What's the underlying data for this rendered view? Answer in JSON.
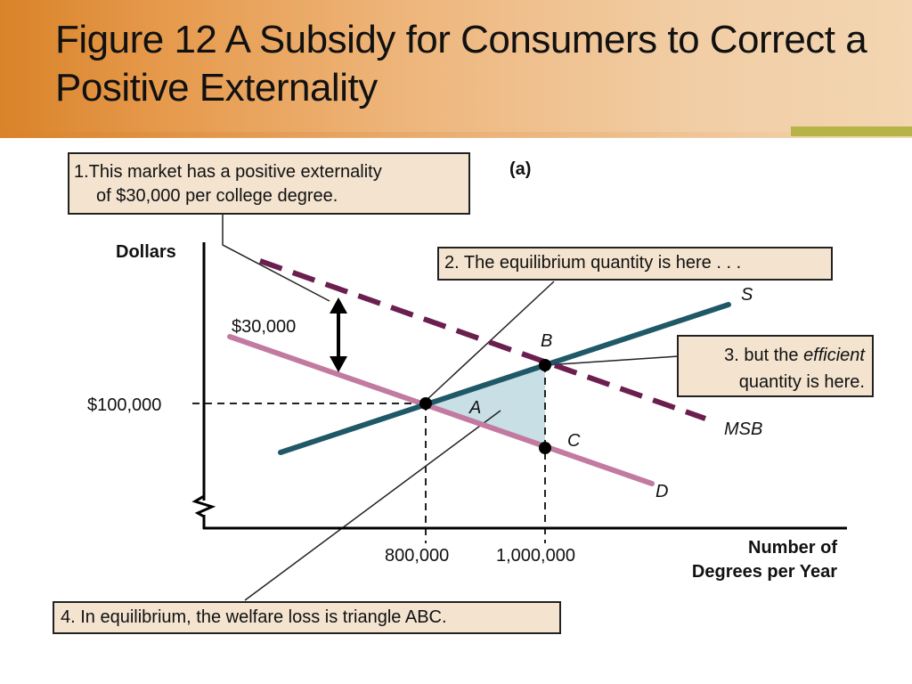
{
  "slide": {
    "title": "Figure 12 A Subsidy for Consumers to Correct a Positive Externality"
  },
  "chart_data": {
    "type": "line",
    "panel_label": "(a)",
    "ylabel": "Dollars",
    "xlabel": "Number of Degrees per Year",
    "xlabel_line1": "Number of",
    "xlabel_line2": "Degrees per Year",
    "y_tick_label": "$100,000",
    "x_tick_labels": [
      "800,000",
      "1,000,000"
    ],
    "externality_label": "$30,000",
    "curves": [
      {
        "name": "S",
        "color": "#1f5866"
      },
      {
        "name": "D",
        "color": "#c27aa0"
      },
      {
        "name": "MSB",
        "color": "#6b1f4f",
        "style": "dashed"
      }
    ],
    "points": [
      {
        "name": "A",
        "x": 800000,
        "y": 100000
      },
      {
        "name": "B"
      },
      {
        "name": "C"
      }
    ],
    "shaded_region": "Triangle ABC",
    "colors": {
      "fill": "#c8dfe6"
    }
  },
  "callouts": {
    "c1_line1": "1.This market has a positive externality",
    "c1_line2": "of $30,000 per college degree.",
    "c2": "2. The equilibrium quantity is here . . .",
    "c3_pre": "3. but the ",
    "c3_em": "efficient",
    "c3_line2": "quantity is here.",
    "c4": "4. In equilibrium, the welfare loss is triangle ABC."
  }
}
